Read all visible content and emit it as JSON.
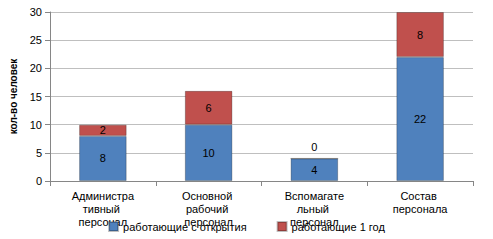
{
  "chart_data": {
    "type": "bar",
    "y_label": "кол-во человек",
    "categories": [
      "Административный персонал",
      "Основной рабочий персонал",
      "Вспомагательный персонал",
      "Состав персонала"
    ],
    "series": [
      {
        "name": "работающие с открытия",
        "color": "#4f81bd",
        "values": [
          8,
          10,
          4,
          22
        ]
      },
      {
        "name": "работающие 1 год",
        "color": "#c0504d",
        "values": [
          2,
          6,
          0,
          8
        ]
      }
    ],
    "ylim": [
      0,
      30
    ],
    "yticks": [
      0,
      5,
      10,
      15,
      20,
      25,
      30
    ],
    "stacked": true,
    "data_labels": true,
    "grid": true,
    "legend": "bottom"
  }
}
